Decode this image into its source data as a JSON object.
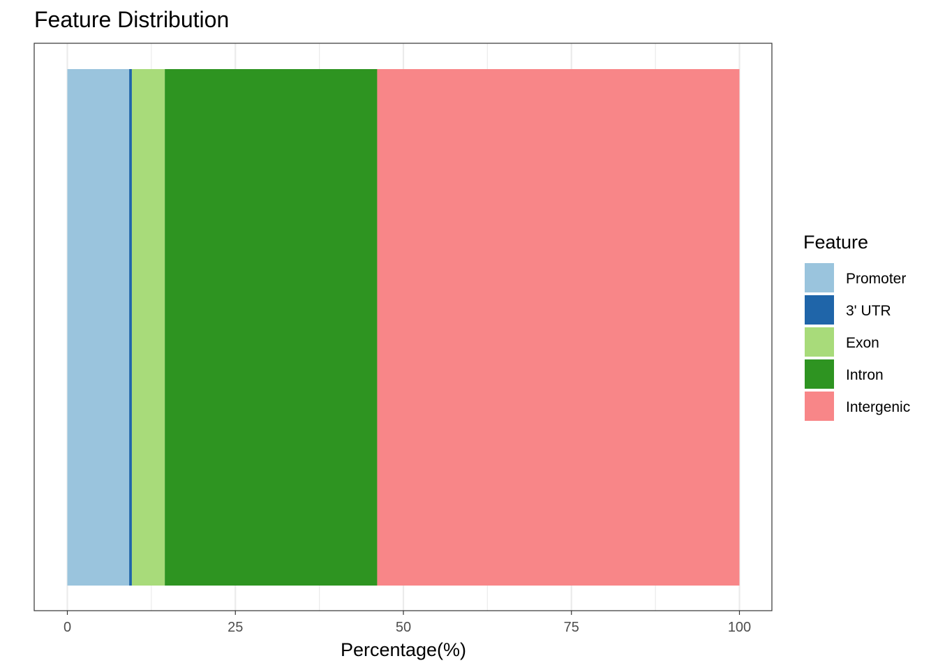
{
  "chart_data": {
    "type": "bar",
    "orientation": "horizontal",
    "stacked": true,
    "title": "Feature Distribution",
    "xlabel": "Percentage(%)",
    "ylabel": "",
    "xlim": [
      0,
      100
    ],
    "x_ticks": [
      0,
      25,
      50,
      75,
      100
    ],
    "x_tick_labels": [
      "0",
      "25",
      "50",
      "75",
      "100"
    ],
    "grid": true,
    "legend": {
      "title": "Feature",
      "placement": "right"
    },
    "series": [
      {
        "name": "Promoter",
        "value": 9.2,
        "color": "#9AC4DD"
      },
      {
        "name": "3' UTR",
        "value": 0.4,
        "color": "#1F65A9"
      },
      {
        "name": "Exon",
        "value": 4.9,
        "color": "#A8DB7A"
      },
      {
        "name": "Intron",
        "value": 31.6,
        "color": "#2E9421"
      },
      {
        "name": "Intergenic",
        "value": 53.9,
        "color": "#F88688"
      }
    ]
  }
}
